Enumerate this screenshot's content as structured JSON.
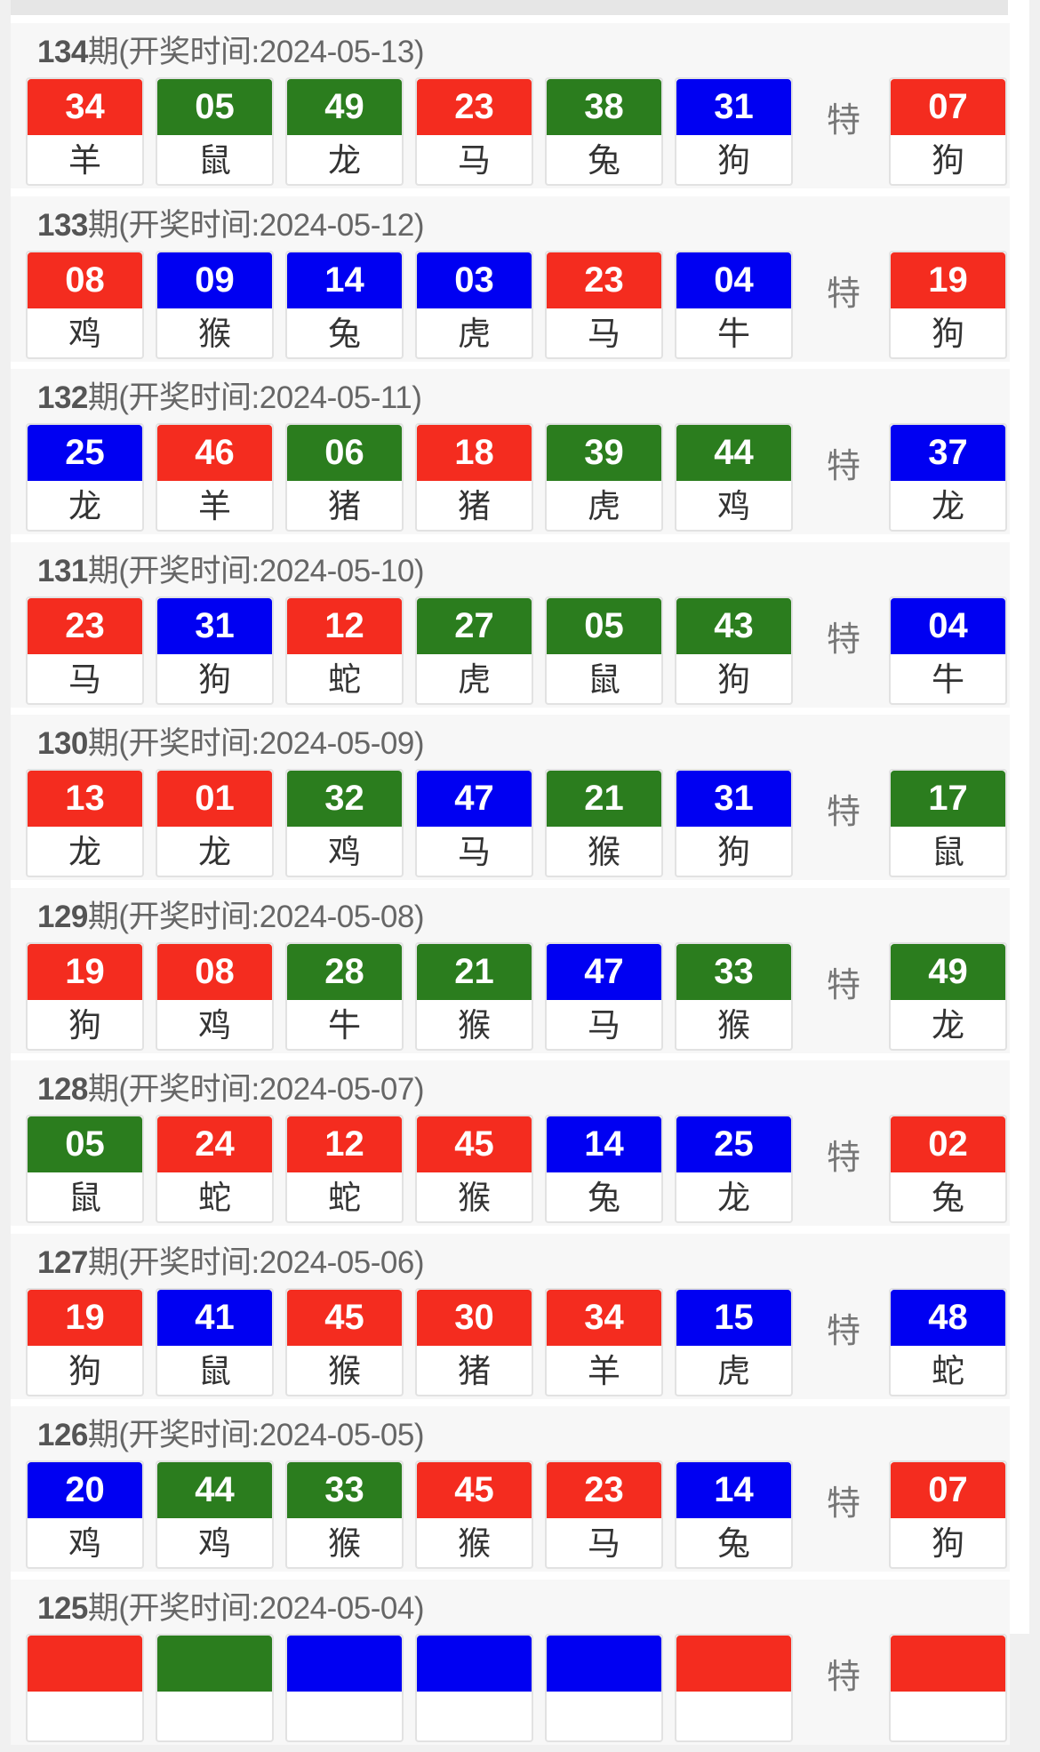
{
  "colors": {
    "red": "#f42c1f",
    "green": "#2b7d1e",
    "blue": "#0000f2"
  },
  "special_label": "特",
  "draws": [
    {
      "issue": "134",
      "title_suffix": "期(开奖时间:2024-05-13)",
      "balls": [
        {
          "n": "34",
          "z": "羊",
          "c": "red"
        },
        {
          "n": "05",
          "z": "鼠",
          "c": "green"
        },
        {
          "n": "49",
          "z": "龙",
          "c": "green"
        },
        {
          "n": "23",
          "z": "马",
          "c": "red"
        },
        {
          "n": "38",
          "z": "兔",
          "c": "green"
        },
        {
          "n": "31",
          "z": "狗",
          "c": "blue"
        }
      ],
      "special": {
        "n": "07",
        "z": "狗",
        "c": "red"
      }
    },
    {
      "issue": "133",
      "title_suffix": "期(开奖时间:2024-05-12)",
      "balls": [
        {
          "n": "08",
          "z": "鸡",
          "c": "red"
        },
        {
          "n": "09",
          "z": "猴",
          "c": "blue"
        },
        {
          "n": "14",
          "z": "兔",
          "c": "blue"
        },
        {
          "n": "03",
          "z": "虎",
          "c": "blue"
        },
        {
          "n": "23",
          "z": "马",
          "c": "red"
        },
        {
          "n": "04",
          "z": "牛",
          "c": "blue"
        }
      ],
      "special": {
        "n": "19",
        "z": "狗",
        "c": "red"
      }
    },
    {
      "issue": "132",
      "title_suffix": "期(开奖时间:2024-05-11)",
      "balls": [
        {
          "n": "25",
          "z": "龙",
          "c": "blue"
        },
        {
          "n": "46",
          "z": "羊",
          "c": "red"
        },
        {
          "n": "06",
          "z": "猪",
          "c": "green"
        },
        {
          "n": "18",
          "z": "猪",
          "c": "red"
        },
        {
          "n": "39",
          "z": "虎",
          "c": "green"
        },
        {
          "n": "44",
          "z": "鸡",
          "c": "green"
        }
      ],
      "special": {
        "n": "37",
        "z": "龙",
        "c": "blue"
      }
    },
    {
      "issue": "131",
      "title_suffix": "期(开奖时间:2024-05-10)",
      "balls": [
        {
          "n": "23",
          "z": "马",
          "c": "red"
        },
        {
          "n": "31",
          "z": "狗",
          "c": "blue"
        },
        {
          "n": "12",
          "z": "蛇",
          "c": "red"
        },
        {
          "n": "27",
          "z": "虎",
          "c": "green"
        },
        {
          "n": "05",
          "z": "鼠",
          "c": "green"
        },
        {
          "n": "43",
          "z": "狗",
          "c": "green"
        }
      ],
      "special": {
        "n": "04",
        "z": "牛",
        "c": "blue"
      }
    },
    {
      "issue": "130",
      "title_suffix": "期(开奖时间:2024-05-09)",
      "balls": [
        {
          "n": "13",
          "z": "龙",
          "c": "red"
        },
        {
          "n": "01",
          "z": "龙",
          "c": "red"
        },
        {
          "n": "32",
          "z": "鸡",
          "c": "green"
        },
        {
          "n": "47",
          "z": "马",
          "c": "blue"
        },
        {
          "n": "21",
          "z": "猴",
          "c": "green"
        },
        {
          "n": "31",
          "z": "狗",
          "c": "blue"
        }
      ],
      "special": {
        "n": "17",
        "z": "鼠",
        "c": "green"
      }
    },
    {
      "issue": "129",
      "title_suffix": "期(开奖时间:2024-05-08)",
      "balls": [
        {
          "n": "19",
          "z": "狗",
          "c": "red"
        },
        {
          "n": "08",
          "z": "鸡",
          "c": "red"
        },
        {
          "n": "28",
          "z": "牛",
          "c": "green"
        },
        {
          "n": "21",
          "z": "猴",
          "c": "green"
        },
        {
          "n": "47",
          "z": "马",
          "c": "blue"
        },
        {
          "n": "33",
          "z": "猴",
          "c": "green"
        }
      ],
      "special": {
        "n": "49",
        "z": "龙",
        "c": "green"
      }
    },
    {
      "issue": "128",
      "title_suffix": "期(开奖时间:2024-05-07)",
      "balls": [
        {
          "n": "05",
          "z": "鼠",
          "c": "green"
        },
        {
          "n": "24",
          "z": "蛇",
          "c": "red"
        },
        {
          "n": "12",
          "z": "蛇",
          "c": "red"
        },
        {
          "n": "45",
          "z": "猴",
          "c": "red"
        },
        {
          "n": "14",
          "z": "兔",
          "c": "blue"
        },
        {
          "n": "25",
          "z": "龙",
          "c": "blue"
        }
      ],
      "special": {
        "n": "02",
        "z": "兔",
        "c": "red"
      }
    },
    {
      "issue": "127",
      "title_suffix": "期(开奖时间:2024-05-06)",
      "balls": [
        {
          "n": "19",
          "z": "狗",
          "c": "red"
        },
        {
          "n": "41",
          "z": "鼠",
          "c": "blue"
        },
        {
          "n": "45",
          "z": "猴",
          "c": "red"
        },
        {
          "n": "30",
          "z": "猪",
          "c": "red"
        },
        {
          "n": "34",
          "z": "羊",
          "c": "red"
        },
        {
          "n": "15",
          "z": "虎",
          "c": "blue"
        }
      ],
      "special": {
        "n": "48",
        "z": "蛇",
        "c": "blue"
      }
    },
    {
      "issue": "126",
      "title_suffix": "期(开奖时间:2024-05-05)",
      "balls": [
        {
          "n": "20",
          "z": "鸡",
          "c": "blue"
        },
        {
          "n": "44",
          "z": "鸡",
          "c": "green"
        },
        {
          "n": "33",
          "z": "猴",
          "c": "green"
        },
        {
          "n": "45",
          "z": "猴",
          "c": "red"
        },
        {
          "n": "23",
          "z": "马",
          "c": "red"
        },
        {
          "n": "14",
          "z": "兔",
          "c": "blue"
        }
      ],
      "special": {
        "n": "07",
        "z": "狗",
        "c": "red"
      }
    },
    {
      "issue": "125",
      "title_suffix": "期(开奖时间:2024-05-04)",
      "balls": [
        {
          "c": "red"
        },
        {
          "c": "green"
        },
        {
          "c": "blue"
        },
        {
          "c": "blue"
        },
        {
          "c": "blue"
        },
        {
          "c": "red"
        }
      ],
      "special": {
        "c": "red"
      }
    }
  ]
}
